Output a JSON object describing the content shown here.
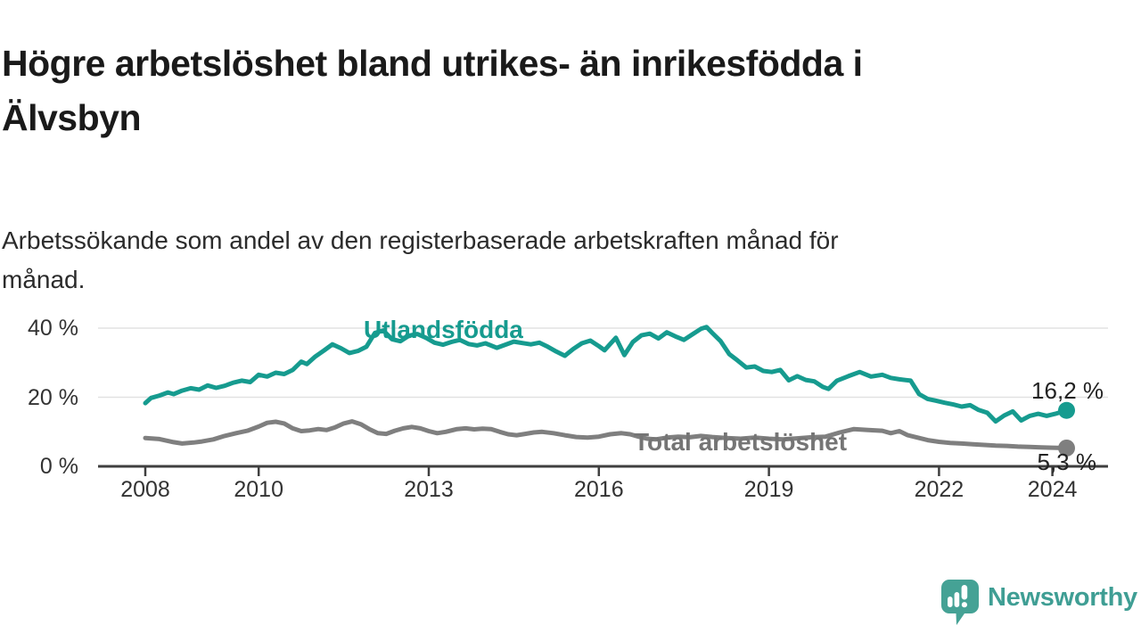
{
  "title_lines": [
    "Högre arbetslöshet bland utrikes- än inrikesfödda i",
    "Älvsbyn"
  ],
  "subtitle_lines": [
    "Arbetssökande som andel av den registerbaserade arbetskraften månad för",
    "månad."
  ],
  "branding": {
    "logo_text": "Newsworthy",
    "logo_icon": "newsworthy-chart-bubble-icon",
    "brand_color": "#3f9e94"
  },
  "chart_data": {
    "type": "line",
    "title": "Högre arbetslöshet bland utrikes- än inrikesfödda i Älvsbyn",
    "subtitle": "Arbetssökande som andel av den registerbaserade arbetskraften månad för månad.",
    "unit": "%",
    "grid": "horizontal-only",
    "legend_position": "inline-labels",
    "xlim": [
      2007.2,
      2025.0
    ],
    "ylim": [
      0,
      43
    ],
    "y_ticks": [
      {
        "label": "40 %",
        "value": 40
      },
      {
        "label": "20 %",
        "value": 20
      },
      {
        "label": "0 %",
        "value": 0
      }
    ],
    "x_ticks": [
      {
        "label": "2008",
        "year": 2008
      },
      {
        "label": "2010",
        "year": 2010
      },
      {
        "label": "2013",
        "year": 2013
      },
      {
        "label": "2016",
        "year": 2016
      },
      {
        "label": "2019",
        "year": 2019
      },
      {
        "label": "2022",
        "year": 2022
      },
      {
        "label": "2024",
        "year": 2024
      }
    ],
    "series": [
      {
        "name": "Utlandsfödda",
        "color": "#169b8f",
        "end_label": "16,2 %",
        "end_value": 16.2,
        "points": [
          [
            2008.0,
            18.3
          ],
          [
            2008.1,
            19.8
          ],
          [
            2008.25,
            20.5
          ],
          [
            2008.4,
            21.4
          ],
          [
            2008.5,
            20.9
          ],
          [
            2008.65,
            21.9
          ],
          [
            2008.8,
            22.6
          ],
          [
            2008.95,
            22.2
          ],
          [
            2009.1,
            23.4
          ],
          [
            2009.25,
            22.7
          ],
          [
            2009.4,
            23.3
          ],
          [
            2009.55,
            24.2
          ],
          [
            2009.7,
            24.8
          ],
          [
            2009.85,
            24.4
          ],
          [
            2010.0,
            26.5
          ],
          [
            2010.15,
            26.0
          ],
          [
            2010.3,
            27.1
          ],
          [
            2010.45,
            26.7
          ],
          [
            2010.6,
            27.9
          ],
          [
            2010.75,
            30.3
          ],
          [
            2010.85,
            29.6
          ],
          [
            2011.0,
            31.8
          ],
          [
            2011.15,
            33.5
          ],
          [
            2011.3,
            35.3
          ],
          [
            2011.45,
            34.2
          ],
          [
            2011.6,
            32.8
          ],
          [
            2011.75,
            33.4
          ],
          [
            2011.9,
            34.6
          ],
          [
            2012.05,
            38.6
          ],
          [
            2012.2,
            39.3
          ],
          [
            2012.35,
            36.8
          ],
          [
            2012.5,
            36.2
          ],
          [
            2012.65,
            37.8
          ],
          [
            2012.8,
            38.3
          ],
          [
            2012.95,
            37.2
          ],
          [
            2013.1,
            35.8
          ],
          [
            2013.25,
            35.2
          ],
          [
            2013.4,
            36.0
          ],
          [
            2013.55,
            36.6
          ],
          [
            2013.7,
            35.4
          ],
          [
            2013.85,
            35.0
          ],
          [
            2014.0,
            35.6
          ],
          [
            2014.2,
            34.3
          ],
          [
            2014.35,
            35.2
          ],
          [
            2014.5,
            36.1
          ],
          [
            2014.65,
            35.7
          ],
          [
            2014.8,
            35.3
          ],
          [
            2014.95,
            35.8
          ],
          [
            2015.1,
            34.6
          ],
          [
            2015.25,
            33.2
          ],
          [
            2015.4,
            32.0
          ],
          [
            2015.55,
            34.0
          ],
          [
            2015.7,
            35.6
          ],
          [
            2015.85,
            36.4
          ],
          [
            2016.0,
            34.8
          ],
          [
            2016.1,
            33.6
          ],
          [
            2016.2,
            35.4
          ],
          [
            2016.3,
            37.2
          ],
          [
            2016.45,
            32.2
          ],
          [
            2016.6,
            36.0
          ],
          [
            2016.75,
            37.9
          ],
          [
            2016.9,
            38.4
          ],
          [
            2017.05,
            37.0
          ],
          [
            2017.2,
            38.8
          ],
          [
            2017.35,
            37.6
          ],
          [
            2017.5,
            36.6
          ],
          [
            2017.65,
            38.2
          ],
          [
            2017.8,
            39.8
          ],
          [
            2017.9,
            40.3
          ],
          [
            2018.0,
            38.6
          ],
          [
            2018.15,
            36.2
          ],
          [
            2018.3,
            32.5
          ],
          [
            2018.45,
            30.6
          ],
          [
            2018.6,
            28.6
          ],
          [
            2018.75,
            28.9
          ],
          [
            2018.9,
            27.6
          ],
          [
            2019.05,
            27.3
          ],
          [
            2019.2,
            27.9
          ],
          [
            2019.35,
            24.9
          ],
          [
            2019.5,
            26.1
          ],
          [
            2019.65,
            25.0
          ],
          [
            2019.8,
            24.6
          ],
          [
            2019.95,
            23.0
          ],
          [
            2020.05,
            22.4
          ],
          [
            2020.2,
            24.8
          ],
          [
            2020.4,
            26.1
          ],
          [
            2020.6,
            27.3
          ],
          [
            2020.8,
            26.0
          ],
          [
            2021.0,
            26.5
          ],
          [
            2021.15,
            25.6
          ],
          [
            2021.3,
            25.2
          ],
          [
            2021.5,
            24.8
          ],
          [
            2021.65,
            20.9
          ],
          [
            2021.8,
            19.5
          ],
          [
            2021.95,
            19.0
          ],
          [
            2022.1,
            18.4
          ],
          [
            2022.25,
            17.9
          ],
          [
            2022.4,
            17.3
          ],
          [
            2022.55,
            17.7
          ],
          [
            2022.7,
            16.3
          ],
          [
            2022.85,
            15.5
          ],
          [
            2023.0,
            13.0
          ],
          [
            2023.15,
            14.7
          ],
          [
            2023.3,
            15.9
          ],
          [
            2023.45,
            13.3
          ],
          [
            2023.6,
            14.6
          ],
          [
            2023.75,
            15.2
          ],
          [
            2023.9,
            14.6
          ],
          [
            2024.05,
            15.2
          ],
          [
            2024.25,
            16.2
          ]
        ]
      },
      {
        "name": "Total arbetslöshet",
        "color": "#7f7f7f",
        "end_label": "5,3 %",
        "end_value": 5.3,
        "points": [
          [
            2008.0,
            8.2
          ],
          [
            2008.25,
            7.9
          ],
          [
            2008.5,
            7.0
          ],
          [
            2008.65,
            6.6
          ],
          [
            2008.85,
            6.9
          ],
          [
            2009.0,
            7.2
          ],
          [
            2009.2,
            7.8
          ],
          [
            2009.4,
            8.8
          ],
          [
            2009.6,
            9.6
          ],
          [
            2009.8,
            10.3
          ],
          [
            2010.0,
            11.5
          ],
          [
            2010.15,
            12.6
          ],
          [
            2010.3,
            12.9
          ],
          [
            2010.45,
            12.4
          ],
          [
            2010.6,
            11.0
          ],
          [
            2010.75,
            10.2
          ],
          [
            2010.9,
            10.4
          ],
          [
            2011.05,
            10.8
          ],
          [
            2011.2,
            10.5
          ],
          [
            2011.35,
            11.3
          ],
          [
            2011.5,
            12.4
          ],
          [
            2011.65,
            13.0
          ],
          [
            2011.8,
            12.2
          ],
          [
            2011.95,
            10.8
          ],
          [
            2012.1,
            9.6
          ],
          [
            2012.25,
            9.4
          ],
          [
            2012.4,
            10.3
          ],
          [
            2012.55,
            11.0
          ],
          [
            2012.7,
            11.4
          ],
          [
            2012.85,
            11.0
          ],
          [
            2013.0,
            10.2
          ],
          [
            2013.15,
            9.6
          ],
          [
            2013.3,
            10.0
          ],
          [
            2013.5,
            10.8
          ],
          [
            2013.65,
            11.0
          ],
          [
            2013.8,
            10.7
          ],
          [
            2013.95,
            10.9
          ],
          [
            2014.1,
            10.8
          ],
          [
            2014.25,
            10.0
          ],
          [
            2014.4,
            9.3
          ],
          [
            2014.55,
            9.0
          ],
          [
            2014.7,
            9.4
          ],
          [
            2014.85,
            9.8
          ],
          [
            2015.0,
            10.0
          ],
          [
            2015.2,
            9.6
          ],
          [
            2015.4,
            9.0
          ],
          [
            2015.6,
            8.5
          ],
          [
            2015.8,
            8.3
          ],
          [
            2016.0,
            8.6
          ],
          [
            2016.2,
            9.3
          ],
          [
            2016.4,
            9.6
          ],
          [
            2016.55,
            9.3
          ],
          [
            2016.7,
            8.6
          ],
          [
            2016.85,
            8.0
          ],
          [
            2017.0,
            7.8
          ],
          [
            2017.2,
            8.3
          ],
          [
            2017.4,
            8.6
          ],
          [
            2017.6,
            8.4
          ],
          [
            2017.8,
            8.8
          ],
          [
            2018.0,
            8.5
          ],
          [
            2018.25,
            8.2
          ],
          [
            2018.5,
            8.0
          ],
          [
            2018.75,
            8.3
          ],
          [
            2019.0,
            8.0
          ],
          [
            2019.25,
            7.8
          ],
          [
            2019.5,
            8.1
          ],
          [
            2019.75,
            8.4
          ],
          [
            2020.0,
            8.6
          ],
          [
            2020.25,
            9.8
          ],
          [
            2020.5,
            10.8
          ],
          [
            2020.75,
            10.5
          ],
          [
            2021.0,
            10.3
          ],
          [
            2021.15,
            9.6
          ],
          [
            2021.3,
            10.2
          ],
          [
            2021.45,
            9.0
          ],
          [
            2021.6,
            8.4
          ],
          [
            2021.8,
            7.6
          ],
          [
            2022.0,
            7.1
          ],
          [
            2022.2,
            6.8
          ],
          [
            2022.4,
            6.6
          ],
          [
            2022.6,
            6.4
          ],
          [
            2022.8,
            6.2
          ],
          [
            2023.0,
            6.0
          ],
          [
            2023.2,
            5.9
          ],
          [
            2023.4,
            5.7
          ],
          [
            2023.6,
            5.6
          ],
          [
            2023.8,
            5.5
          ],
          [
            2024.0,
            5.4
          ],
          [
            2024.25,
            5.3
          ]
        ]
      }
    ]
  }
}
